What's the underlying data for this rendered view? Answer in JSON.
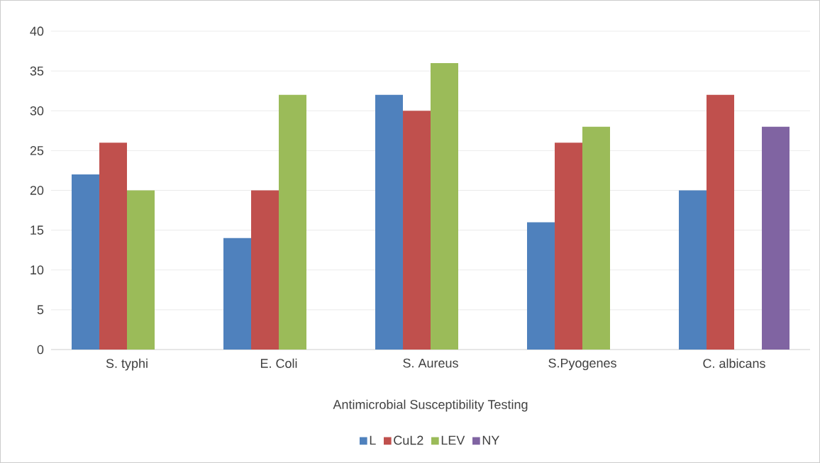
{
  "chart_data": {
    "type": "bar",
    "xlabel": "Antimicrobial Susceptibility Testing",
    "categories": [
      "S. typhi",
      "E. Coli",
      "S. Aureus",
      "S.Pyogenes",
      "C. albicans"
    ],
    "series": [
      {
        "name": "L",
        "color": "#4f81bd",
        "values": [
          22,
          14,
          32,
          16,
          20
        ]
      },
      {
        "name": "CuL2",
        "color": "#c0504d",
        "values": [
          26,
          20,
          30,
          26,
          32
        ]
      },
      {
        "name": "LEV",
        "color": "#9bbb59",
        "values": [
          20,
          32,
          36,
          28,
          null
        ]
      },
      {
        "name": "NY",
        "color": "#8064a2",
        "values": [
          null,
          null,
          null,
          null,
          28
        ]
      }
    ],
    "ylim": [
      0,
      40
    ],
    "yticks": [
      0,
      5,
      10,
      15,
      20,
      25,
      30,
      35,
      40
    ],
    "grid": "y",
    "legend": "bottom"
  }
}
